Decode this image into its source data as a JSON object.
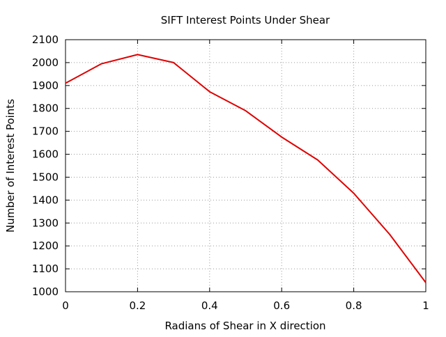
{
  "chart_data": {
    "type": "line",
    "title": "SIFT Interest Points Under Shear",
    "xlabel": "Radians of Shear in X direction",
    "ylabel": "Number of Interest Points",
    "xlim": [
      0,
      1
    ],
    "ylim": [
      1000,
      2100
    ],
    "x_ticks": [
      0,
      0.2,
      0.4,
      0.6,
      0.8,
      1
    ],
    "x_tick_labels": [
      "0",
      "0.2",
      "0.4",
      "0.6",
      "0.8",
      "1"
    ],
    "y_ticks": [
      1000,
      1100,
      1200,
      1300,
      1400,
      1500,
      1600,
      1700,
      1800,
      1900,
      2000,
      2100
    ],
    "y_tick_labels": [
      "1000",
      "1100",
      "1200",
      "1300",
      "1400",
      "1500",
      "1600",
      "1700",
      "1800",
      "1900",
      "2000",
      "2100"
    ],
    "grid": true,
    "legend": "none",
    "series": [
      {
        "color": "#e00000",
        "x": [
          0,
          0.1,
          0.2,
          0.3,
          0.4,
          0.5,
          0.6,
          0.7,
          0.8,
          0.9,
          1.0
        ],
        "y": [
          1910,
          1995,
          2035,
          2000,
          1873,
          1790,
          1675,
          1575,
          1430,
          1250,
          1040
        ]
      }
    ]
  }
}
